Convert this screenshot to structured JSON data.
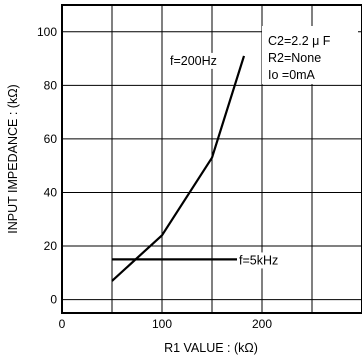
{
  "chart_data": {
    "type": "line",
    "xlabel": "R1  VALUE : (kΩ)",
    "ylabel": "INPUT  IMPEDANCE : (kΩ)",
    "xlim": [
      0,
      300
    ],
    "ylim": [
      -5,
      110
    ],
    "x_ticks": [
      0,
      100,
      200
    ],
    "y_ticks": [
      0,
      20,
      40,
      60,
      80,
      100
    ],
    "x_grid": [
      0,
      50,
      100,
      150,
      200,
      250,
      300
    ],
    "y_grid": [
      0,
      20,
      40,
      60,
      80,
      100
    ],
    "grid": true,
    "annotations": [
      "C2=2.2 μ F",
      "R2=None",
      "Io =0mA"
    ],
    "series": [
      {
        "name": "f=200Hz",
        "points": [
          [
            50,
            7
          ],
          [
            100,
            24
          ],
          [
            150,
            53
          ],
          [
            182,
            91
          ]
        ]
      },
      {
        "name": "f=5kHz",
        "points": [
          [
            50,
            15
          ],
          [
            175,
            15
          ]
        ]
      }
    ]
  }
}
